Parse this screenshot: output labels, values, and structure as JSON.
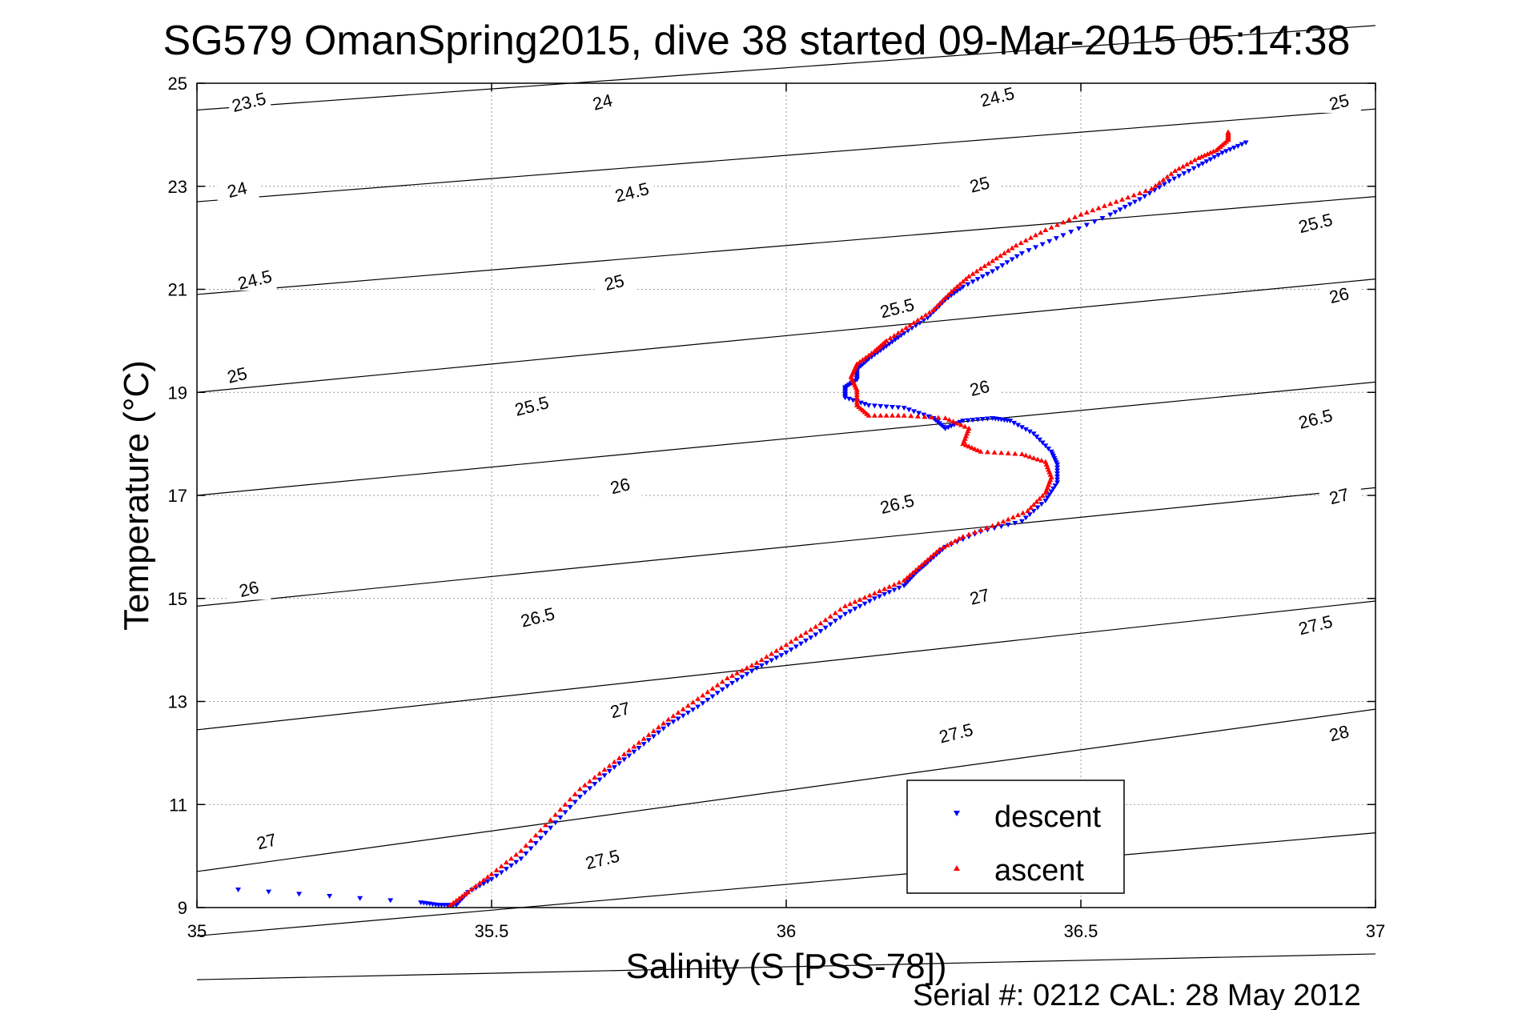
{
  "chart_data": {
    "type": "scatter",
    "title": "SG579 OmanSpring2015, dive 38 started 09-Mar-2015 05:14:38",
    "xlabel": "Salinity (S [PSS-78])",
    "ylabel": "Temperature (°C)",
    "footer": "Serial #: 0212  CAL: 28 May 2012",
    "xlim": [
      35,
      37
    ],
    "ylim": [
      9,
      25
    ],
    "xticks": [
      "35",
      "35.5",
      "36",
      "36.5",
      "37"
    ],
    "yticks": [
      "9",
      "11",
      "13",
      "15",
      "17",
      "19",
      "21",
      "23",
      "25"
    ],
    "grid": true,
    "legend_position": "bottom-right",
    "series": [
      {
        "name": "descent",
        "marker": "triangle-down",
        "color": "#0000ff",
        "points": [
          [
            35.07,
            9.35
          ],
          [
            35.38,
            9.1
          ],
          [
            35.41,
            9.05
          ],
          [
            35.44,
            9.05
          ],
          [
            35.46,
            9.3
          ],
          [
            35.5,
            9.55
          ],
          [
            35.55,
            9.95
          ],
          [
            35.6,
            10.55
          ],
          [
            35.65,
            11.15
          ],
          [
            35.7,
            11.65
          ],
          [
            35.75,
            12.1
          ],
          [
            35.8,
            12.55
          ],
          [
            35.85,
            12.9
          ],
          [
            35.9,
            13.3
          ],
          [
            35.95,
            13.65
          ],
          [
            36.0,
            13.95
          ],
          [
            36.05,
            14.3
          ],
          [
            36.1,
            14.7
          ],
          [
            36.15,
            15.0
          ],
          [
            36.2,
            15.25
          ],
          [
            36.22,
            15.5
          ],
          [
            36.24,
            15.7
          ],
          [
            36.27,
            16.0
          ],
          [
            36.33,
            16.3
          ],
          [
            36.4,
            16.5
          ],
          [
            36.44,
            16.9
          ],
          [
            36.46,
            17.25
          ],
          [
            36.46,
            17.6
          ],
          [
            36.45,
            17.85
          ],
          [
            36.42,
            18.2
          ],
          [
            36.38,
            18.45
          ],
          [
            36.35,
            18.5
          ],
          [
            36.3,
            18.45
          ],
          [
            36.27,
            18.3
          ],
          [
            36.25,
            18.5
          ],
          [
            36.2,
            18.7
          ],
          [
            36.14,
            18.75
          ],
          [
            36.1,
            18.9
          ],
          [
            36.1,
            19.1
          ],
          [
            36.12,
            19.25
          ],
          [
            36.12,
            19.45
          ],
          [
            36.14,
            19.65
          ],
          [
            36.17,
            19.9
          ],
          [
            36.2,
            20.15
          ],
          [
            36.24,
            20.45
          ],
          [
            36.27,
            20.8
          ],
          [
            36.3,
            21.05
          ],
          [
            36.35,
            21.35
          ],
          [
            36.4,
            21.7
          ],
          [
            36.47,
            22.05
          ],
          [
            36.55,
            22.45
          ],
          [
            36.6,
            22.75
          ],
          [
            36.65,
            23.1
          ],
          [
            36.7,
            23.4
          ],
          [
            36.74,
            23.65
          ],
          [
            36.78,
            23.85
          ]
        ]
      },
      {
        "name": "ascent",
        "marker": "triangle-up",
        "color": "#ff0000",
        "points": [
          [
            35.43,
            9.05
          ],
          [
            35.46,
            9.3
          ],
          [
            35.5,
            9.65
          ],
          [
            35.55,
            10.1
          ],
          [
            35.6,
            10.7
          ],
          [
            35.65,
            11.3
          ],
          [
            35.7,
            11.75
          ],
          [
            35.75,
            12.2
          ],
          [
            35.8,
            12.65
          ],
          [
            35.85,
            13.05
          ],
          [
            35.9,
            13.45
          ],
          [
            35.95,
            13.75
          ],
          [
            36.0,
            14.1
          ],
          [
            36.05,
            14.45
          ],
          [
            36.1,
            14.85
          ],
          [
            36.15,
            15.1
          ],
          [
            36.2,
            15.35
          ],
          [
            36.23,
            15.65
          ],
          [
            36.26,
            15.95
          ],
          [
            36.3,
            16.2
          ],
          [
            36.36,
            16.45
          ],
          [
            36.41,
            16.7
          ],
          [
            36.44,
            17.05
          ],
          [
            36.45,
            17.35
          ],
          [
            36.44,
            17.65
          ],
          [
            36.4,
            17.8
          ],
          [
            36.33,
            17.85
          ],
          [
            36.3,
            18.0
          ],
          [
            36.31,
            18.3
          ],
          [
            36.27,
            18.5
          ],
          [
            36.2,
            18.55
          ],
          [
            36.14,
            18.55
          ],
          [
            36.12,
            18.75
          ],
          [
            36.12,
            19.05
          ],
          [
            36.11,
            19.3
          ],
          [
            36.12,
            19.55
          ],
          [
            36.15,
            19.8
          ],
          [
            36.17,
            20.0
          ],
          [
            36.21,
            20.3
          ],
          [
            36.25,
            20.6
          ],
          [
            36.28,
            20.95
          ],
          [
            36.31,
            21.25
          ],
          [
            36.35,
            21.55
          ],
          [
            36.39,
            21.85
          ],
          [
            36.44,
            22.15
          ],
          [
            36.5,
            22.45
          ],
          [
            36.56,
            22.7
          ],
          [
            36.62,
            22.95
          ],
          [
            36.66,
            23.3
          ],
          [
            36.7,
            23.55
          ],
          [
            36.73,
            23.7
          ],
          [
            36.75,
            23.9
          ],
          [
            36.75,
            24.05
          ]
        ]
      }
    ],
    "contours": [
      {
        "level": "23.5",
        "y0": 24.48,
        "y1": 26.12,
        "label_x": 35.09
      },
      {
        "level": "24",
        "y0": 22.7,
        "y1": 24.5,
        "label_x": 35.07
      },
      {
        "level": "24.5",
        "y0": 20.9,
        "y1": 22.8,
        "label_x": 35.1
      },
      {
        "level": "25",
        "y0": 19.0,
        "y1": 21.2,
        "label_x": 35.07
      },
      {
        "level": "25.5",
        "y0": 17.0,
        "y1": 19.2,
        "label_x": 35.55
      },
      {
        "level": "26",
        "y0": 14.85,
        "y1": 17.15,
        "label_x": 35.08
      },
      {
        "level": "26.5",
        "y0": 12.45,
        "y1": 14.95,
        "label_x": 35.58
      },
      {
        "level": "27",
        "y0": 9.7,
        "y1": 12.85,
        "label_x": 35.12
      },
      {
        "level": "27.5",
        "y0": 8.45,
        "y1": 10.45,
        "label_x": 35.69
      },
      {
        "level": "28",
        "y0": 7.6,
        "y1": 8.1,
        "label_x": 36.78
      }
    ],
    "contour_labels": [
      {
        "text": "23.5",
        "x": 35.09,
        "y": 24.55
      },
      {
        "text": "24",
        "x": 35.07,
        "y": 22.85
      },
      {
        "text": "24.5",
        "x": 35.1,
        "y": 21.1
      },
      {
        "text": "25",
        "x": 35.07,
        "y": 19.25
      },
      {
        "text": "24",
        "x": 35.69,
        "y": 24.55
      },
      {
        "text": "24.5",
        "x": 35.74,
        "y": 22.8
      },
      {
        "text": "25",
        "x": 35.71,
        "y": 21.05
      },
      {
        "text": "25.5",
        "x": 35.57,
        "y": 18.65
      },
      {
        "text": "26",
        "x": 35.72,
        "y": 17.1
      },
      {
        "text": "26.5",
        "x": 35.58,
        "y": 14.55
      },
      {
        "text": "27",
        "x": 35.72,
        "y": 12.75
      },
      {
        "text": "27.5",
        "x": 35.69,
        "y": 9.85
      },
      {
        "text": "24.5",
        "x": 36.36,
        "y": 24.65
      },
      {
        "text": "25",
        "x": 36.33,
        "y": 22.95
      },
      {
        "text": "25.5",
        "x": 36.19,
        "y": 20.55
      },
      {
        "text": "26",
        "x": 36.33,
        "y": 19.0
      },
      {
        "text": "26.5",
        "x": 36.19,
        "y": 16.75
      },
      {
        "text": "27",
        "x": 36.33,
        "y": 14.95
      },
      {
        "text": "27.5",
        "x": 36.29,
        "y": 12.3
      },
      {
        "text": "25",
        "x": 36.94,
        "y": 24.55
      },
      {
        "text": "25.5",
        "x": 36.9,
        "y": 22.2
      },
      {
        "text": "26",
        "x": 36.94,
        "y": 20.8
      },
      {
        "text": "26.5",
        "x": 36.9,
        "y": 18.4
      },
      {
        "text": "27",
        "x": 36.94,
        "y": 16.9
      },
      {
        "text": "27.5",
        "x": 36.9,
        "y": 14.4
      },
      {
        "text": "28",
        "x": 36.94,
        "y": 12.3
      },
      {
        "text": "26",
        "x": 35.09,
        "y": 15.1
      },
      {
        "text": "27",
        "x": 35.12,
        "y": 10.2
      }
    ]
  }
}
